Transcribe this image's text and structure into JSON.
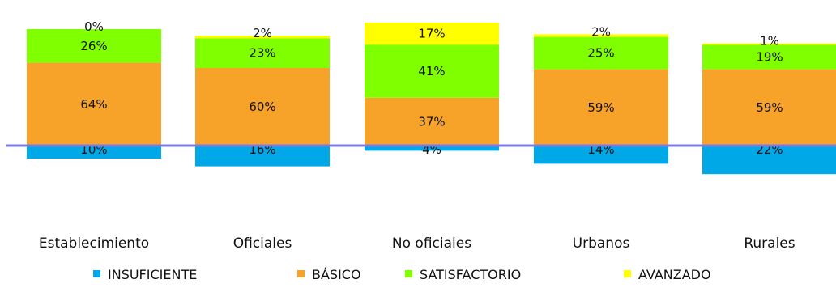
{
  "chart_data": {
    "type": "bar",
    "stacking": "diverging",
    "baseline_series": "INSUFICIENTE",
    "categories": [
      "Establecimiento",
      "Oficiales",
      "No oficiales",
      "Urbanos",
      "Rurales"
    ],
    "series": [
      {
        "name": "INSUFICIENTE",
        "color": "#00A8E8",
        "values": [
          10,
          16,
          4,
          14,
          22
        ],
        "labels": [
          "10%",
          "16%",
          "4%",
          "14%",
          "22%"
        ]
      },
      {
        "name": "BÁSICO",
        "color": "#F7A229",
        "values": [
          64,
          60,
          37,
          59,
          59
        ],
        "labels": [
          "64%",
          "60%",
          "37%",
          "59%",
          "59%"
        ]
      },
      {
        "name": "SATISFACTORIO",
        "color": "#7FFF00",
        "values": [
          26,
          23,
          41,
          25,
          19
        ],
        "labels": [
          "26%",
          "23%",
          "41%",
          "25%",
          "19%"
        ]
      },
      {
        "name": "AVANZADO",
        "color": "#FFFF00",
        "values": [
          0,
          2,
          17,
          2,
          1
        ],
        "labels": [
          "0%",
          "2%",
          "17%",
          "2%",
          "1%"
        ]
      }
    ],
    "baseline_color": "#7B7BE6",
    "legend_position": "bottom",
    "grid": false
  }
}
